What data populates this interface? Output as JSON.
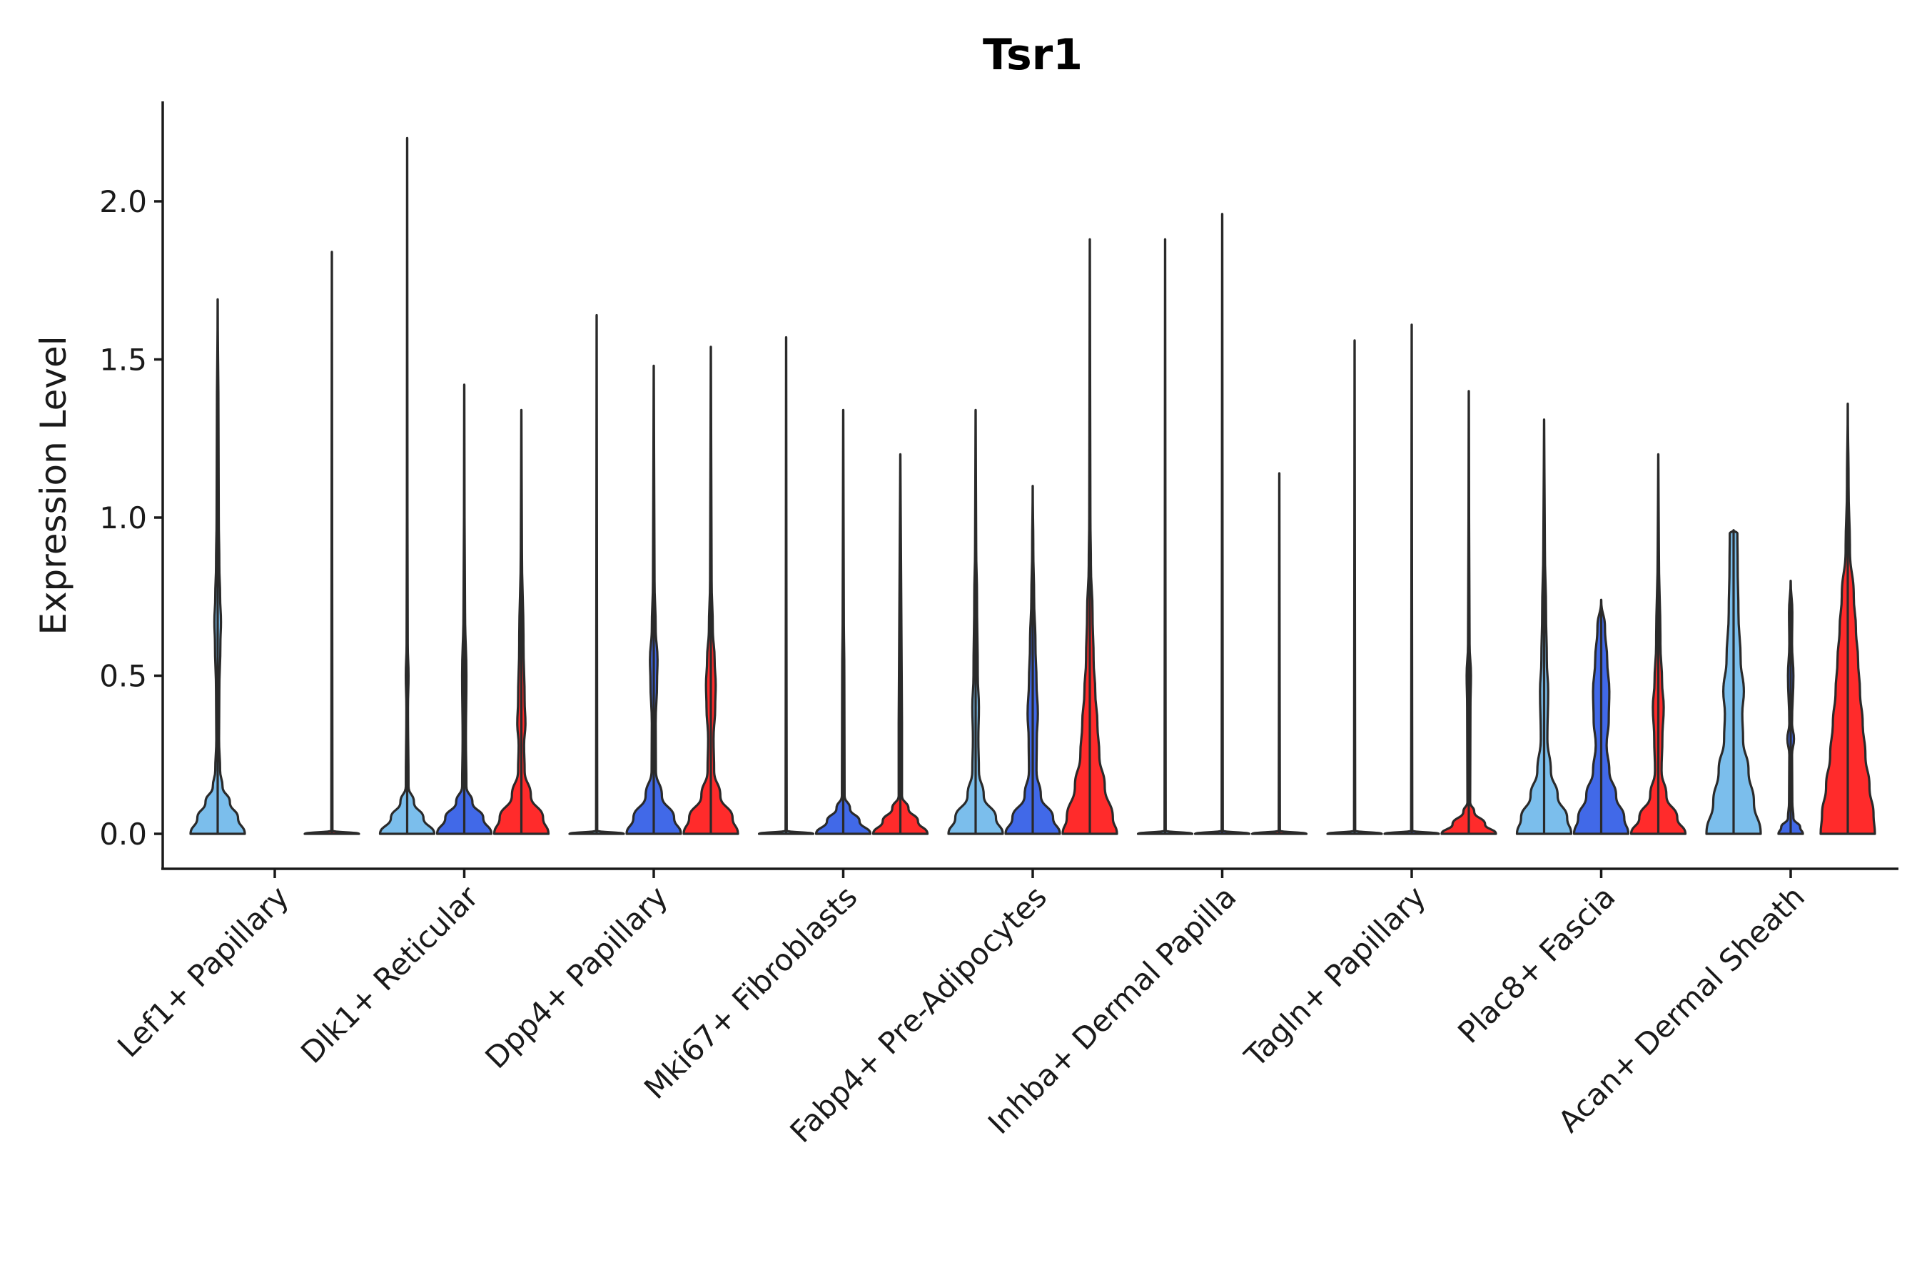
{
  "chart_data": {
    "type": "violin",
    "title": "Tsr1",
    "xlabel": "",
    "ylabel": "Expression Level",
    "ylim": [
      -0.11,
      2.32
    ],
    "yticks": [
      0.0,
      0.5,
      1.0,
      1.5,
      2.0
    ],
    "ytick_labels": [
      "0.0",
      "0.5",
      "1.0",
      "1.5",
      "2.0"
    ],
    "categories": [
      "Lef1+ Papillary",
      "Dlk1+ Reticular",
      "Dpp4+ Papillary",
      "Mki67+ Fibroblasts",
      "Fabp4+ Pre-Adipocytes",
      "Inhba+ Dermal Papilla",
      "Tagln+ Papillary",
      "Plac8+ Fascia",
      "Acan+ Dermal Sheath"
    ],
    "conditions": [
      {
        "name": "condition-1",
        "color": "#7BBEEC"
      },
      {
        "name": "condition-2",
        "color": "#4169E8"
      },
      {
        "name": "condition-3",
        "color": "#FF2B2B"
      }
    ],
    "violins": [
      {
        "category": 0,
        "condition": 0,
        "max": 1.69,
        "profile": [
          [
            0,
            1.0
          ],
          [
            0.05,
            0.75
          ],
          [
            0.1,
            0.45
          ],
          [
            0.15,
            0.18
          ],
          [
            0.2,
            0.09
          ],
          [
            0.3,
            0.05
          ],
          [
            0.45,
            0.06
          ],
          [
            0.6,
            0.1
          ],
          [
            0.67,
            0.12
          ],
          [
            0.75,
            0.09
          ],
          [
            0.85,
            0.06
          ],
          [
            1.0,
            0.04
          ],
          [
            1.3,
            0.03
          ],
          [
            1.69,
            0.0
          ]
        ]
      },
      {
        "category": 0,
        "condition": 2,
        "max": 1.84,
        "profile": [
          [
            0,
            1.0
          ],
          [
            0.01,
            0.02
          ],
          [
            1.84,
            0.0
          ]
        ]
      },
      {
        "category": 1,
        "condition": 0,
        "max": 2.2,
        "profile": [
          [
            0,
            1.0
          ],
          [
            0.05,
            0.6
          ],
          [
            0.1,
            0.25
          ],
          [
            0.15,
            0.05
          ],
          [
            0.4,
            0.03
          ],
          [
            0.5,
            0.05
          ],
          [
            0.6,
            0.02
          ],
          [
            1.0,
            0.01
          ],
          [
            2.2,
            0.0
          ]
        ]
      },
      {
        "category": 1,
        "condition": 1,
        "max": 1.42,
        "profile": [
          [
            0,
            1.0
          ],
          [
            0.05,
            0.7
          ],
          [
            0.1,
            0.3
          ],
          [
            0.15,
            0.08
          ],
          [
            0.3,
            0.06
          ],
          [
            0.5,
            0.08
          ],
          [
            0.7,
            0.03
          ],
          [
            1.0,
            0.01
          ],
          [
            1.42,
            0.0
          ]
        ]
      },
      {
        "category": 1,
        "condition": 2,
        "max": 1.34,
        "profile": [
          [
            0,
            1.0
          ],
          [
            0.05,
            0.8
          ],
          [
            0.12,
            0.35
          ],
          [
            0.2,
            0.12
          ],
          [
            0.28,
            0.1
          ],
          [
            0.35,
            0.15
          ],
          [
            0.42,
            0.12
          ],
          [
            0.6,
            0.08
          ],
          [
            0.9,
            0.02
          ],
          [
            1.34,
            0.0
          ]
        ]
      },
      {
        "category": 2,
        "condition": 0,
        "max": 1.64,
        "profile": [
          [
            0,
            1.0
          ],
          [
            0.01,
            0.02
          ],
          [
            1.64,
            0.0
          ]
        ]
      },
      {
        "category": 2,
        "condition": 1,
        "max": 1.48,
        "profile": [
          [
            0,
            1.0
          ],
          [
            0.05,
            0.75
          ],
          [
            0.12,
            0.3
          ],
          [
            0.2,
            0.08
          ],
          [
            0.35,
            0.07
          ],
          [
            0.48,
            0.12
          ],
          [
            0.55,
            0.14
          ],
          [
            0.65,
            0.07
          ],
          [
            0.8,
            0.03
          ],
          [
            1.48,
            0.0
          ]
        ]
      },
      {
        "category": 2,
        "condition": 2,
        "max": 1.54,
        "profile": [
          [
            0,
            1.0
          ],
          [
            0.05,
            0.8
          ],
          [
            0.12,
            0.35
          ],
          [
            0.2,
            0.12
          ],
          [
            0.3,
            0.1
          ],
          [
            0.4,
            0.16
          ],
          [
            0.47,
            0.18
          ],
          [
            0.55,
            0.14
          ],
          [
            0.65,
            0.07
          ],
          [
            0.8,
            0.03
          ],
          [
            1.54,
            0.0
          ]
        ]
      },
      {
        "category": 3,
        "condition": 0,
        "max": 1.57,
        "profile": [
          [
            0,
            1.0
          ],
          [
            0.01,
            0.02
          ],
          [
            1.57,
            0.0
          ]
        ]
      },
      {
        "category": 3,
        "condition": 1,
        "max": 1.34,
        "profile": [
          [
            0,
            1.0
          ],
          [
            0.04,
            0.6
          ],
          [
            0.08,
            0.25
          ],
          [
            0.12,
            0.05
          ],
          [
            0.5,
            0.04
          ],
          [
            0.7,
            0.02
          ],
          [
            1.34,
            0.0
          ]
        ]
      },
      {
        "category": 3,
        "condition": 2,
        "max": 1.2,
        "profile": [
          [
            0,
            1.0
          ],
          [
            0.04,
            0.65
          ],
          [
            0.08,
            0.3
          ],
          [
            0.12,
            0.06
          ],
          [
            0.35,
            0.06
          ],
          [
            0.5,
            0.05
          ],
          [
            0.8,
            0.03
          ],
          [
            1.2,
            0.0
          ]
        ]
      },
      {
        "category": 4,
        "condition": 0,
        "max": 1.34,
        "profile": [
          [
            0,
            1.0
          ],
          [
            0.05,
            0.75
          ],
          [
            0.12,
            0.3
          ],
          [
            0.2,
            0.12
          ],
          [
            0.3,
            0.1
          ],
          [
            0.4,
            0.12
          ],
          [
            0.5,
            0.08
          ],
          [
            0.75,
            0.05
          ],
          [
            0.9,
            0.02
          ],
          [
            1.34,
            0.0
          ]
        ]
      },
      {
        "category": 4,
        "condition": 1,
        "max": 1.1,
        "profile": [
          [
            0,
            1.0
          ],
          [
            0.05,
            0.75
          ],
          [
            0.12,
            0.3
          ],
          [
            0.2,
            0.14
          ],
          [
            0.3,
            0.15
          ],
          [
            0.38,
            0.19
          ],
          [
            0.48,
            0.14
          ],
          [
            0.6,
            0.1
          ],
          [
            0.75,
            0.05
          ],
          [
            0.9,
            0.02
          ],
          [
            1.1,
            0.0
          ]
        ]
      },
      {
        "category": 4,
        "condition": 2,
        "max": 1.88,
        "profile": [
          [
            0,
            1.0
          ],
          [
            0.05,
            0.85
          ],
          [
            0.15,
            0.55
          ],
          [
            0.25,
            0.35
          ],
          [
            0.35,
            0.28
          ],
          [
            0.45,
            0.2
          ],
          [
            0.55,
            0.14
          ],
          [
            0.7,
            0.1
          ],
          [
            0.85,
            0.04
          ],
          [
            1.0,
            0.02
          ],
          [
            1.88,
            0.0
          ]
        ]
      },
      {
        "category": 5,
        "condition": 0,
        "max": 1.88,
        "profile": [
          [
            0,
            1.0
          ],
          [
            0.01,
            0.02
          ],
          [
            1.88,
            0.0
          ]
        ]
      },
      {
        "category": 5,
        "condition": 1,
        "max": 1.96,
        "profile": [
          [
            0,
            1.0
          ],
          [
            0.01,
            0.02
          ],
          [
            1.96,
            0.0
          ]
        ]
      },
      {
        "category": 5,
        "condition": 2,
        "max": 1.14,
        "profile": [
          [
            0,
            1.0
          ],
          [
            0.01,
            0.02
          ],
          [
            1.14,
            0.0
          ]
        ]
      },
      {
        "category": 6,
        "condition": 0,
        "max": 1.56,
        "profile": [
          [
            0,
            1.0
          ],
          [
            0.01,
            0.02
          ],
          [
            1.56,
            0.0
          ]
        ]
      },
      {
        "category": 6,
        "condition": 1,
        "max": 1.61,
        "profile": [
          [
            0,
            1.0
          ],
          [
            0.01,
            0.02
          ],
          [
            1.61,
            0.0
          ]
        ]
      },
      {
        "category": 6,
        "condition": 2,
        "max": 1.4,
        "profile": [
          [
            0,
            1.0
          ],
          [
            0.03,
            0.6
          ],
          [
            0.07,
            0.2
          ],
          [
            0.1,
            0.05
          ],
          [
            0.4,
            0.06
          ],
          [
            0.5,
            0.08
          ],
          [
            0.6,
            0.03
          ],
          [
            1.0,
            0.01
          ],
          [
            1.4,
            0.0
          ]
        ]
      },
      {
        "category": 7,
        "condition": 0,
        "max": 1.31,
        "profile": [
          [
            0,
            1.0
          ],
          [
            0.05,
            0.85
          ],
          [
            0.12,
            0.5
          ],
          [
            0.2,
            0.25
          ],
          [
            0.3,
            0.12
          ],
          [
            0.45,
            0.15
          ],
          [
            0.55,
            0.1
          ],
          [
            0.7,
            0.07
          ],
          [
            0.9,
            0.03
          ],
          [
            1.31,
            0.0
          ]
        ]
      },
      {
        "category": 7,
        "condition": 1,
        "max": 0.74,
        "profile": [
          [
            0,
            1.0
          ],
          [
            0.05,
            0.85
          ],
          [
            0.12,
            0.55
          ],
          [
            0.2,
            0.3
          ],
          [
            0.28,
            0.2
          ],
          [
            0.36,
            0.28
          ],
          [
            0.45,
            0.3
          ],
          [
            0.55,
            0.22
          ],
          [
            0.65,
            0.14
          ],
          [
            0.74,
            0.0
          ]
        ]
      },
      {
        "category": 7,
        "condition": 2,
        "max": 1.2,
        "profile": [
          [
            0,
            1.0
          ],
          [
            0.05,
            0.7
          ],
          [
            0.12,
            0.3
          ],
          [
            0.2,
            0.12
          ],
          [
            0.3,
            0.15
          ],
          [
            0.4,
            0.2
          ],
          [
            0.48,
            0.14
          ],
          [
            0.6,
            0.08
          ],
          [
            0.9,
            0.02
          ],
          [
            1.2,
            0.0
          ]
        ]
      },
      {
        "category": 8,
        "condition": 0,
        "max": 0.96,
        "profile": [
          [
            0,
            1.0
          ],
          [
            0.1,
            0.75
          ],
          [
            0.2,
            0.55
          ],
          [
            0.3,
            0.35
          ],
          [
            0.38,
            0.32
          ],
          [
            0.45,
            0.38
          ],
          [
            0.55,
            0.26
          ],
          [
            0.7,
            0.18
          ],
          [
            0.85,
            0.15
          ],
          [
            0.95,
            0.14
          ],
          [
            0.96,
            0.0
          ]
        ]
      },
      {
        "category": 8,
        "condition": 1,
        "max": 0.8,
        "profile": [
          [
            0,
            0.45
          ],
          [
            0.02,
            0.35
          ],
          [
            0.05,
            0.1
          ],
          [
            0.1,
            0.06
          ],
          [
            0.25,
            0.05
          ],
          [
            0.3,
            0.12
          ],
          [
            0.35,
            0.05
          ],
          [
            0.5,
            0.1
          ],
          [
            0.6,
            0.05
          ],
          [
            0.7,
            0.06
          ],
          [
            0.8,
            0.0
          ]
        ]
      },
      {
        "category": 8,
        "condition": 2,
        "max": 1.36,
        "profile": [
          [
            0,
            1.0
          ],
          [
            0.06,
            0.95
          ],
          [
            0.15,
            0.8
          ],
          [
            0.25,
            0.65
          ],
          [
            0.35,
            0.55
          ],
          [
            0.45,
            0.45
          ],
          [
            0.55,
            0.38
          ],
          [
            0.65,
            0.3
          ],
          [
            0.75,
            0.22
          ],
          [
            0.9,
            0.08
          ],
          [
            1.1,
            0.03
          ],
          [
            1.36,
            0.0
          ]
        ]
      }
    ]
  }
}
